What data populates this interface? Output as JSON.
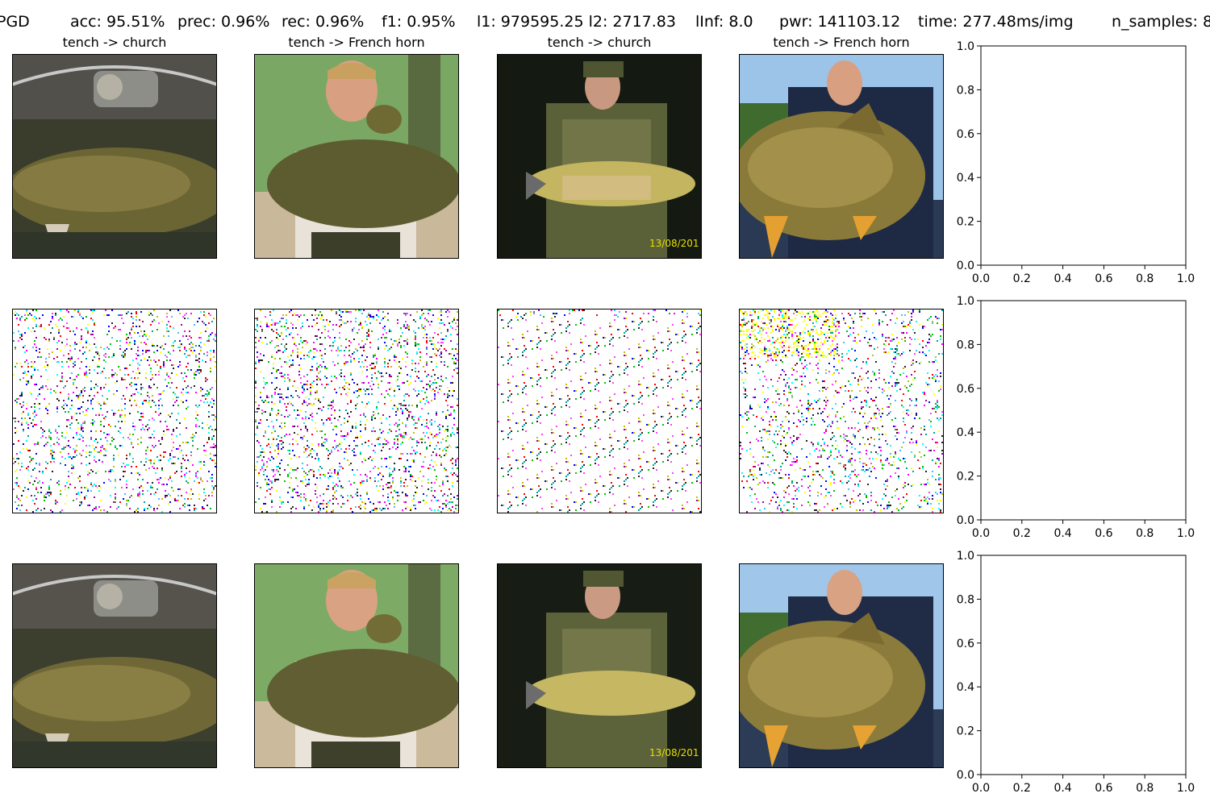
{
  "figure": {
    "suptitle": {
      "method": "PGD",
      "acc": "acc: 95.51%",
      "prec": "prec: 0.96%",
      "rec": "rec: 0.96%",
      "f1": "f1: 0.95%",
      "l1l2": "l1: 979595.25 l2: 2717.83",
      "linf": "lInf: 8.0",
      "pwr": "pwr: 141103.12",
      "time": "time: 277.48ms/img",
      "n_samples": "n_samples: 8"
    },
    "columns": [
      {
        "title": "tench -> church"
      },
      {
        "title": "tench -> French horn"
      },
      {
        "title": "tench -> church"
      },
      {
        "title": "tench -> French horn"
      }
    ],
    "timestamp_text": "13/08/201"
  },
  "chart_data": [
    {
      "type": "scatter",
      "title": "",
      "xlabel": "",
      "ylabel": "",
      "xlim": [
        0,
        1
      ],
      "ylim": [
        0,
        1
      ],
      "xticks": [
        "0.0",
        "0.2",
        "0.4",
        "0.6",
        "0.8",
        "1.0"
      ],
      "yticks": [
        "0.0",
        "0.2",
        "0.4",
        "0.6",
        "0.8",
        "1.0"
      ],
      "series": []
    },
    {
      "type": "scatter",
      "title": "",
      "xlabel": "",
      "ylabel": "",
      "xlim": [
        0,
        1
      ],
      "ylim": [
        0,
        1
      ],
      "xticks": [
        "0.0",
        "0.2",
        "0.4",
        "0.6",
        "0.8",
        "1.0"
      ],
      "yticks": [
        "0.0",
        "0.2",
        "0.4",
        "0.6",
        "0.8",
        "1.0"
      ],
      "series": []
    },
    {
      "type": "scatter",
      "title": "",
      "xlabel": "",
      "ylabel": "",
      "xlim": [
        0,
        1
      ],
      "ylim": [
        0,
        1
      ],
      "xticks": [
        "0.0",
        "0.2",
        "0.4",
        "0.6",
        "0.8",
        "1.0"
      ],
      "yticks": [
        "0.0",
        "0.2",
        "0.4",
        "0.6",
        "0.8",
        "1.0"
      ],
      "series": []
    }
  ]
}
